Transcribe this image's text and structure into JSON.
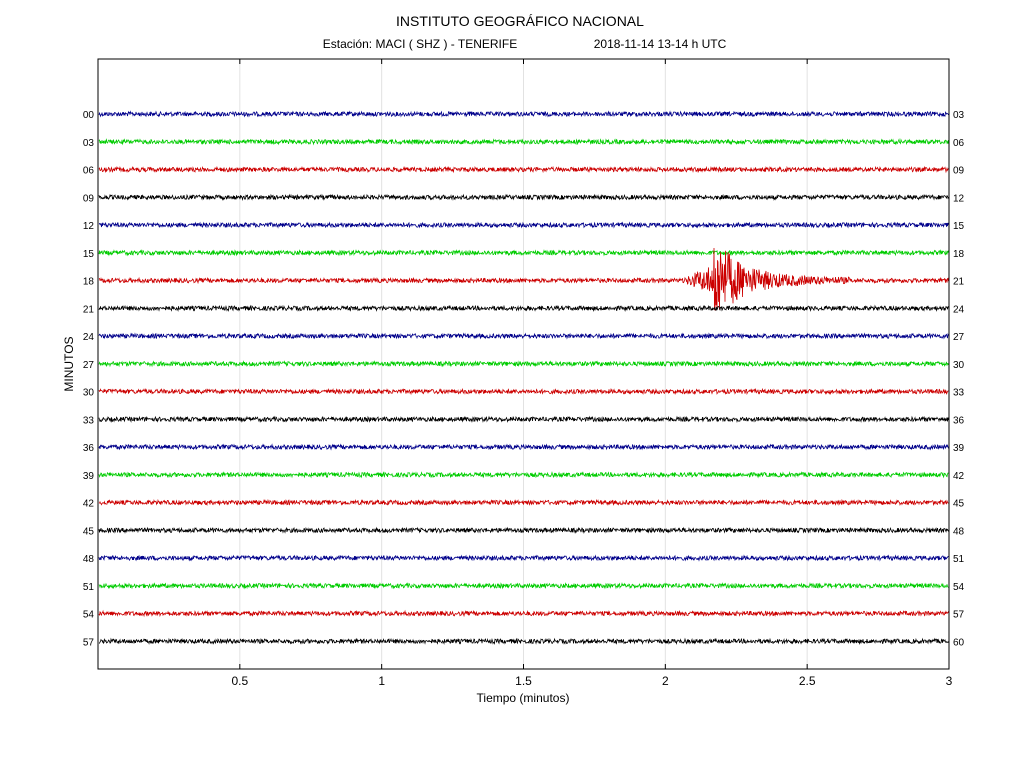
{
  "chart_data": {
    "type": "line",
    "title": "INSTITUTO GEOGRÁFICO NACIONAL",
    "subtitle_station": "Estación:  MACI ( SHZ ) - TENERIFE",
    "subtitle_time": "2018-11-14  13-14 h UTC",
    "xlabel": "Tiempo (minutos)",
    "ylabel": "MINUTOS",
    "xlim": [
      0,
      3
    ],
    "x_ticks": [
      "0.5",
      "1",
      "1.5",
      "2",
      "2.5",
      "3"
    ],
    "x_tick_values": [
      0.5,
      1,
      1.5,
      2,
      2.5,
      3
    ],
    "grid": true,
    "trace_colors": [
      "#00008b",
      "#00cc00",
      "#cc0000",
      "#000000"
    ],
    "traces": [
      {
        "start": "00",
        "end": "03"
      },
      {
        "start": "03",
        "end": "06"
      },
      {
        "start": "06",
        "end": "09"
      },
      {
        "start": "09",
        "end": "12"
      },
      {
        "start": "12",
        "end": "15"
      },
      {
        "start": "15",
        "end": "18"
      },
      {
        "start": "18",
        "end": "21",
        "event": {
          "onset_min": 2.06,
          "peak_min": 2.17,
          "end_min": 2.65
        }
      },
      {
        "start": "21",
        "end": "24"
      },
      {
        "start": "24",
        "end": "27"
      },
      {
        "start": "27",
        "end": "30"
      },
      {
        "start": "30",
        "end": "33"
      },
      {
        "start": "33",
        "end": "36"
      },
      {
        "start": "36",
        "end": "39"
      },
      {
        "start": "39",
        "end": "42"
      },
      {
        "start": "42",
        "end": "45"
      },
      {
        "start": "45",
        "end": "48"
      },
      {
        "start": "48",
        "end": "51"
      },
      {
        "start": "51",
        "end": "54"
      },
      {
        "start": "54",
        "end": "57"
      },
      {
        "start": "57",
        "end": "60"
      }
    ]
  }
}
